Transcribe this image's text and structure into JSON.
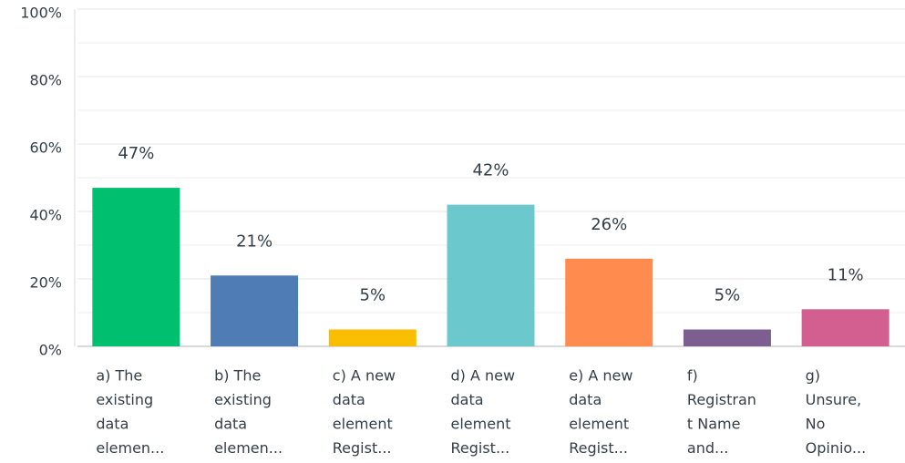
{
  "chart_data": {
    "type": "bar",
    "categories": [
      [
        "a) The",
        "existing",
        "data",
        "elemen..."
      ],
      [
        "b) The",
        "existing",
        "data",
        "elemen..."
      ],
      [
        "c) A new",
        "data",
        "element",
        "Regist..."
      ],
      [
        "d) A new",
        "data",
        "element",
        "Regist..."
      ],
      [
        "e) A new",
        "data",
        "element",
        "Regist..."
      ],
      [
        "f)",
        "Registran",
        "t Name",
        "and..."
      ],
      [
        "g)",
        "Unsure,",
        "No",
        "Opinio..."
      ]
    ],
    "values": [
      47,
      21,
      5,
      42,
      26,
      5,
      11
    ],
    "value_labels": [
      "47%",
      "21%",
      "5%",
      "42%",
      "26%",
      "5%",
      "11%"
    ],
    "colors": [
      "#00bf6f",
      "#507cb6",
      "#f9be00",
      "#6bc8cd",
      "#ff8b4f",
      "#7d5e90",
      "#d25f90"
    ],
    "ylim": [
      0,
      100
    ],
    "yticks": [
      {
        "value": 0,
        "label": "0%"
      },
      {
        "value": 20,
        "label": "20%"
      },
      {
        "value": 40,
        "label": "40%"
      },
      {
        "value": 60,
        "label": "60%"
      },
      {
        "value": 80,
        "label": "80%"
      },
      {
        "value": 100,
        "label": "100%"
      }
    ],
    "minor_yticks": [
      10,
      30,
      50,
      70,
      90
    ],
    "grid": true
  }
}
